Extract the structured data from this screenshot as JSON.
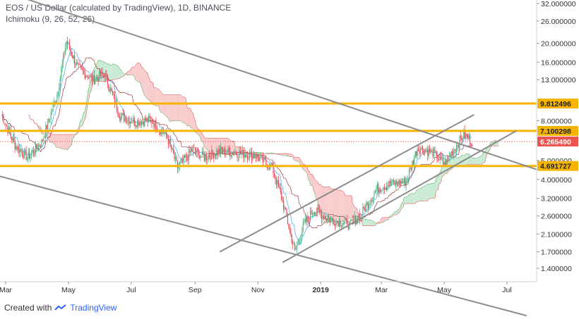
{
  "header": {
    "title": "EOS / US Dollar (calculated by TradingView), 1D, BINANCE",
    "indicator": "Ichimoku (9, 26, 52, 26)"
  },
  "footer": {
    "created_with": "Created with",
    "brand": "TradingView"
  },
  "colors": {
    "up": "#53b987",
    "down": "#eb4d5c",
    "cloud_bear": "#f7b9bb",
    "cloud_bull": "#b7e3c5",
    "level_line": "#f5b400",
    "trend_line": "#8c8c8c",
    "last_price": "#ef5350",
    "axis_text": "#333333"
  },
  "chart_data": {
    "type": "candlestick",
    "symbol": "EOS / US Dollar (calculated by TradingView)",
    "timeframe": "1D",
    "exchange": "BINANCE",
    "indicator": "Ichimoku (9, 26, 52, 26)",
    "y_scale": "log",
    "y_ticks": [
      "32.000000",
      "26.000000",
      "20.000000",
      "16.000000",
      "13.000000",
      "8.000000",
      "5.000000",
      "4.000000",
      "3.200000",
      "2.600000",
      "2.100000",
      "1.700000",
      "1.400000"
    ],
    "x_ticks": [
      "Mar",
      "May",
      "Jul",
      "Sep",
      "Nov",
      "2019",
      "Mar",
      "May",
      "Jul"
    ],
    "horizontal_levels": [
      {
        "value": 9.812496,
        "label": "9.812496"
      },
      {
        "value": 7.100298,
        "label": "7.100298"
      },
      {
        "value": 4.691727,
        "label": "4.691727"
      }
    ],
    "last_price": {
      "value": 6.26549,
      "label": "6.265490"
    },
    "close_series": [
      {
        "date": "2018-02-25",
        "close": 8.6
      },
      {
        "date": "2018-03-10",
        "close": 6.0
      },
      {
        "date": "2018-03-22",
        "close": 5.2
      },
      {
        "date": "2018-04-05",
        "close": 6.2
      },
      {
        "date": "2018-04-20",
        "close": 11.0
      },
      {
        "date": "2018-04-29",
        "close": 20.5
      },
      {
        "date": "2018-05-10",
        "close": 15.0
      },
      {
        "date": "2018-05-25",
        "close": 13.0
      },
      {
        "date": "2018-06-05",
        "close": 14.0
      },
      {
        "date": "2018-06-20",
        "close": 8.5
      },
      {
        "date": "2018-07-05",
        "close": 7.9
      },
      {
        "date": "2018-07-20",
        "close": 8.1
      },
      {
        "date": "2018-08-05",
        "close": 6.6
      },
      {
        "date": "2018-08-15",
        "close": 4.6
      },
      {
        "date": "2018-08-30",
        "close": 5.7
      },
      {
        "date": "2018-09-10",
        "close": 5.2
      },
      {
        "date": "2018-09-25",
        "close": 5.6
      },
      {
        "date": "2018-10-10",
        "close": 5.5
      },
      {
        "date": "2018-10-30",
        "close": 5.3
      },
      {
        "date": "2018-11-15",
        "close": 4.6
      },
      {
        "date": "2018-11-25",
        "close": 3.1
      },
      {
        "date": "2018-12-07",
        "close": 1.7
      },
      {
        "date": "2018-12-15",
        "close": 2.3
      },
      {
        "date": "2018-12-25",
        "close": 2.8
      },
      {
        "date": "2019-01-10",
        "close": 2.5
      },
      {
        "date": "2019-01-30",
        "close": 2.35
      },
      {
        "date": "2019-02-10",
        "close": 2.7
      },
      {
        "date": "2019-02-25",
        "close": 3.6
      },
      {
        "date": "2019-03-10",
        "close": 3.8
      },
      {
        "date": "2019-03-25",
        "close": 3.9
      },
      {
        "date": "2019-04-05",
        "close": 5.8
      },
      {
        "date": "2019-04-20",
        "close": 5.5
      },
      {
        "date": "2019-05-01",
        "close": 4.8
      },
      {
        "date": "2019-05-10",
        "close": 5.7
      },
      {
        "date": "2019-05-20",
        "close": 6.8
      },
      {
        "date": "2019-05-28",
        "close": 6.27
      }
    ],
    "trend_lines": [
      {
        "name": "descending-channel-upper",
        "from": {
          "date": "2018-02-20",
          "price": 38
        },
        "to": {
          "date": "2019-08-10",
          "price": 4.3
        }
      },
      {
        "name": "descending-channel-lower",
        "from": {
          "date": "2018-02-20",
          "price": 4.2
        },
        "to": {
          "date": "2019-07-20",
          "price": 0.8
        }
      },
      {
        "name": "ascending-channel-lower",
        "from": {
          "date": "2018-11-25",
          "price": 1.5
        },
        "to": {
          "date": "2019-07-10",
          "price": 7.1
        }
      },
      {
        "name": "ascending-channel-upper",
        "from": {
          "date": "2018-09-25",
          "price": 1.7
        },
        "to": {
          "date": "2019-05-30",
          "price": 8.6
        }
      }
    ]
  }
}
